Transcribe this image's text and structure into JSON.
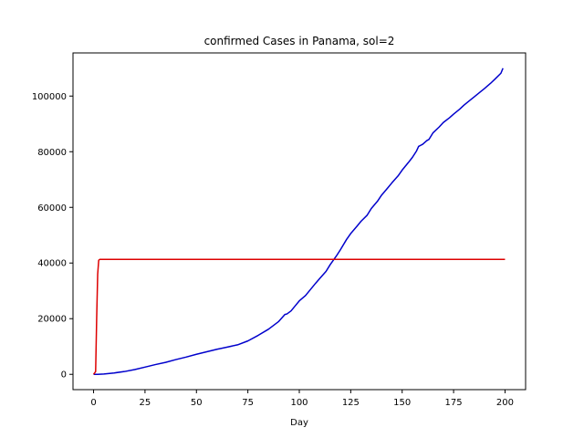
{
  "chart_data": {
    "type": "line",
    "title": "confirmed Cases in Panama, sol=2",
    "xlabel": "Day",
    "ylabel": "",
    "xlim": [
      -10,
      210
    ],
    "ylim": [
      -5500,
      115500
    ],
    "xticks": [
      0,
      25,
      50,
      75,
      100,
      125,
      150,
      175,
      200
    ],
    "yticks": [
      0,
      20000,
      40000,
      60000,
      80000,
      100000
    ],
    "grid": false,
    "legend": "none",
    "series": [
      {
        "color": "#0000cc",
        "x": [
          0,
          2,
          5,
          10,
          15,
          20,
          25,
          30,
          35,
          40,
          45,
          50,
          55,
          60,
          65,
          70,
          75,
          80,
          85,
          90,
          93,
          94,
          96,
          98,
          100,
          103,
          105,
          108,
          110,
          113,
          115,
          118,
          120,
          123,
          125,
          128,
          130,
          133,
          135,
          138,
          140,
          143,
          145,
          148,
          150,
          153,
          155,
          157,
          158,
          159,
          160,
          162,
          163,
          165,
          168,
          170,
          173,
          175,
          178,
          180,
          183,
          185,
          188,
          190,
          193,
          195,
          198,
          199
        ],
        "y": [
          0,
          0,
          100,
          500,
          1000,
          1700,
          2600,
          3500,
          4300,
          5300,
          6200,
          7200,
          8100,
          9000,
          9800,
          10600,
          12000,
          14000,
          16200,
          19000,
          21500,
          21700,
          22800,
          24600,
          26400,
          28300,
          30100,
          32800,
          34500,
          37000,
          39400,
          42500,
          44800,
          48500,
          50600,
          53200,
          55000,
          57200,
          59600,
          62200,
          64400,
          67000,
          68800,
          71300,
          73400,
          76100,
          78000,
          80300,
          81900,
          82300,
          82700,
          84000,
          84400,
          86800,
          88900,
          90500,
          92200,
          93500,
          95300,
          96700,
          98500,
          99700,
          101500,
          102700,
          104600,
          106000,
          108200,
          110000
        ]
      },
      {
        "color": "#dd0000",
        "x": [
          0,
          1,
          1.5,
          2,
          2.5,
          3,
          50,
          100,
          150,
          200
        ],
        "y": [
          0,
          1000,
          20000,
          36000,
          41000,
          41300,
          41300,
          41300,
          41300,
          41300
        ]
      }
    ]
  }
}
